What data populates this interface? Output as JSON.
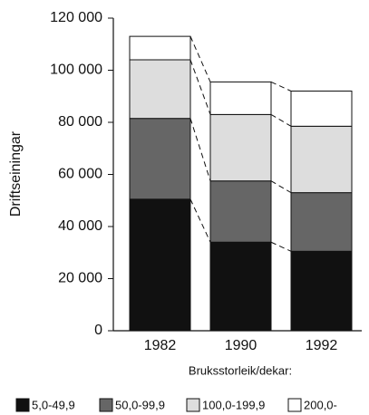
{
  "chart_data": {
    "type": "stacked-bar",
    "y_label": "Driftseiningar",
    "x_label": "Bruksstorleik/dekar:",
    "categories": [
      "1982",
      "1990",
      "1992"
    ],
    "series": [
      {
        "name": "5,0-49,9",
        "color": "#111111",
        "values": [
          50500,
          34000,
          30500
        ]
      },
      {
        "name": "50,0-99,9",
        "color": "#666666",
        "values": [
          31000,
          23500,
          22500
        ]
      },
      {
        "name": "100,0-199,9",
        "color": "#dddddd",
        "values": [
          22500,
          25500,
          25500
        ]
      },
      {
        "name": "200,0-",
        "color": "#ffffff",
        "values": [
          9000,
          12500,
          13500
        ]
      }
    ],
    "ylim": [
      0,
      120000
    ],
    "yticks": [
      0,
      {
        "value": 20000,
        "label": "20 000"
      },
      {
        "value": 40000,
        "label": "40 000"
      },
      {
        "value": 60000,
        "label": "60 000"
      },
      {
        "value": 80000,
        "label": "80 000"
      },
      {
        "value": 100000,
        "label": "100 000"
      },
      {
        "value": 120000,
        "label": "120 000"
      }
    ]
  }
}
